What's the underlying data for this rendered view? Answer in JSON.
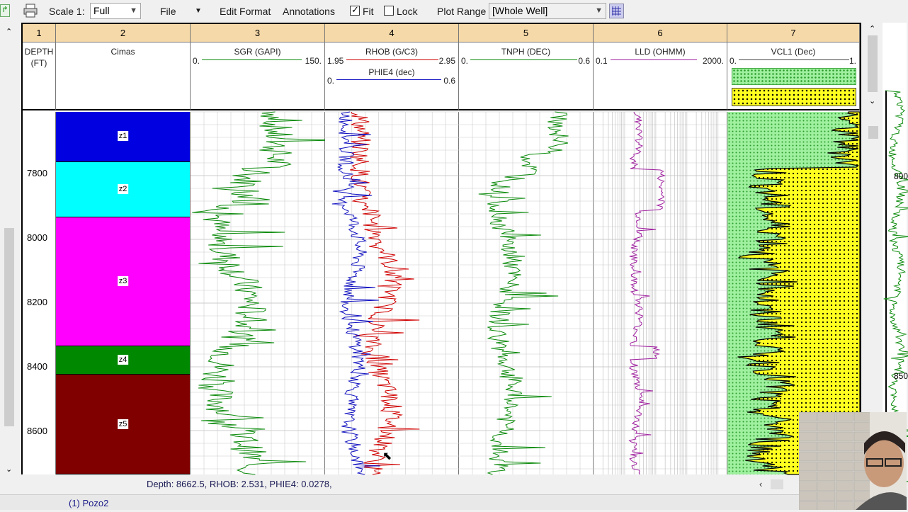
{
  "toolbar": {
    "scale_label": "Scale 1:",
    "scale_value": "Full",
    "file_menu": "File",
    "edit_format": "Edit Format",
    "annotations": "Annotations",
    "fit_label": "Fit",
    "fit_checked": true,
    "lock_label": "Lock",
    "lock_checked": false,
    "plot_range_label": "Plot Range",
    "plot_range_value": "[Whole Well]"
  },
  "track_numbers": [
    "1",
    "2",
    "3",
    "4",
    "5",
    "6",
    "7"
  ],
  "tracks": {
    "depth": {
      "title_line1": "DEPTH",
      "title_line2": "(FT)"
    },
    "cimas": {
      "title": "Cimas"
    },
    "sgr": {
      "title": "SGR (GAPI)",
      "min": "0.",
      "max": "150.",
      "color": "#0a8a0a"
    },
    "rhob": {
      "title": "RHOB (G/C3)",
      "min": "1.95",
      "max": "2.95",
      "color": "#d00000"
    },
    "phie": {
      "title": "PHIE4 (dec)",
      "min": "0.",
      "max": "0.6",
      "color": "#1010c0"
    },
    "tnph": {
      "title": "TNPH (DEC)",
      "min": "0.",
      "max": "0.6",
      "color": "#0a8a0a"
    },
    "lld": {
      "title": "LLD (OHMM)",
      "min": "0.1",
      "max": "2000.",
      "color": "#a020a0"
    },
    "vcl": {
      "title": "VCL1 (Dec)",
      "min": "0.",
      "max": "1."
    }
  },
  "depth_labels": [
    "7800",
    "8000",
    "8200",
    "8400",
    "8600"
  ],
  "zones": [
    {
      "name": "z1",
      "color": "#0000e0"
    },
    {
      "name": "z2",
      "color": "#00ffff"
    },
    {
      "name": "z3",
      "color": "#ff00ff"
    },
    {
      "name": "z4",
      "color": "#008800"
    },
    {
      "name": "z5",
      "color": "#800000"
    }
  ],
  "right_panel_labels": [
    "800",
    "850"
  ],
  "status": {
    "readout": "Depth: 8662.5,  RHOB: 2.531,  PHIE4: 0.0278,",
    "well_tab": "(1) Pozo2"
  }
}
